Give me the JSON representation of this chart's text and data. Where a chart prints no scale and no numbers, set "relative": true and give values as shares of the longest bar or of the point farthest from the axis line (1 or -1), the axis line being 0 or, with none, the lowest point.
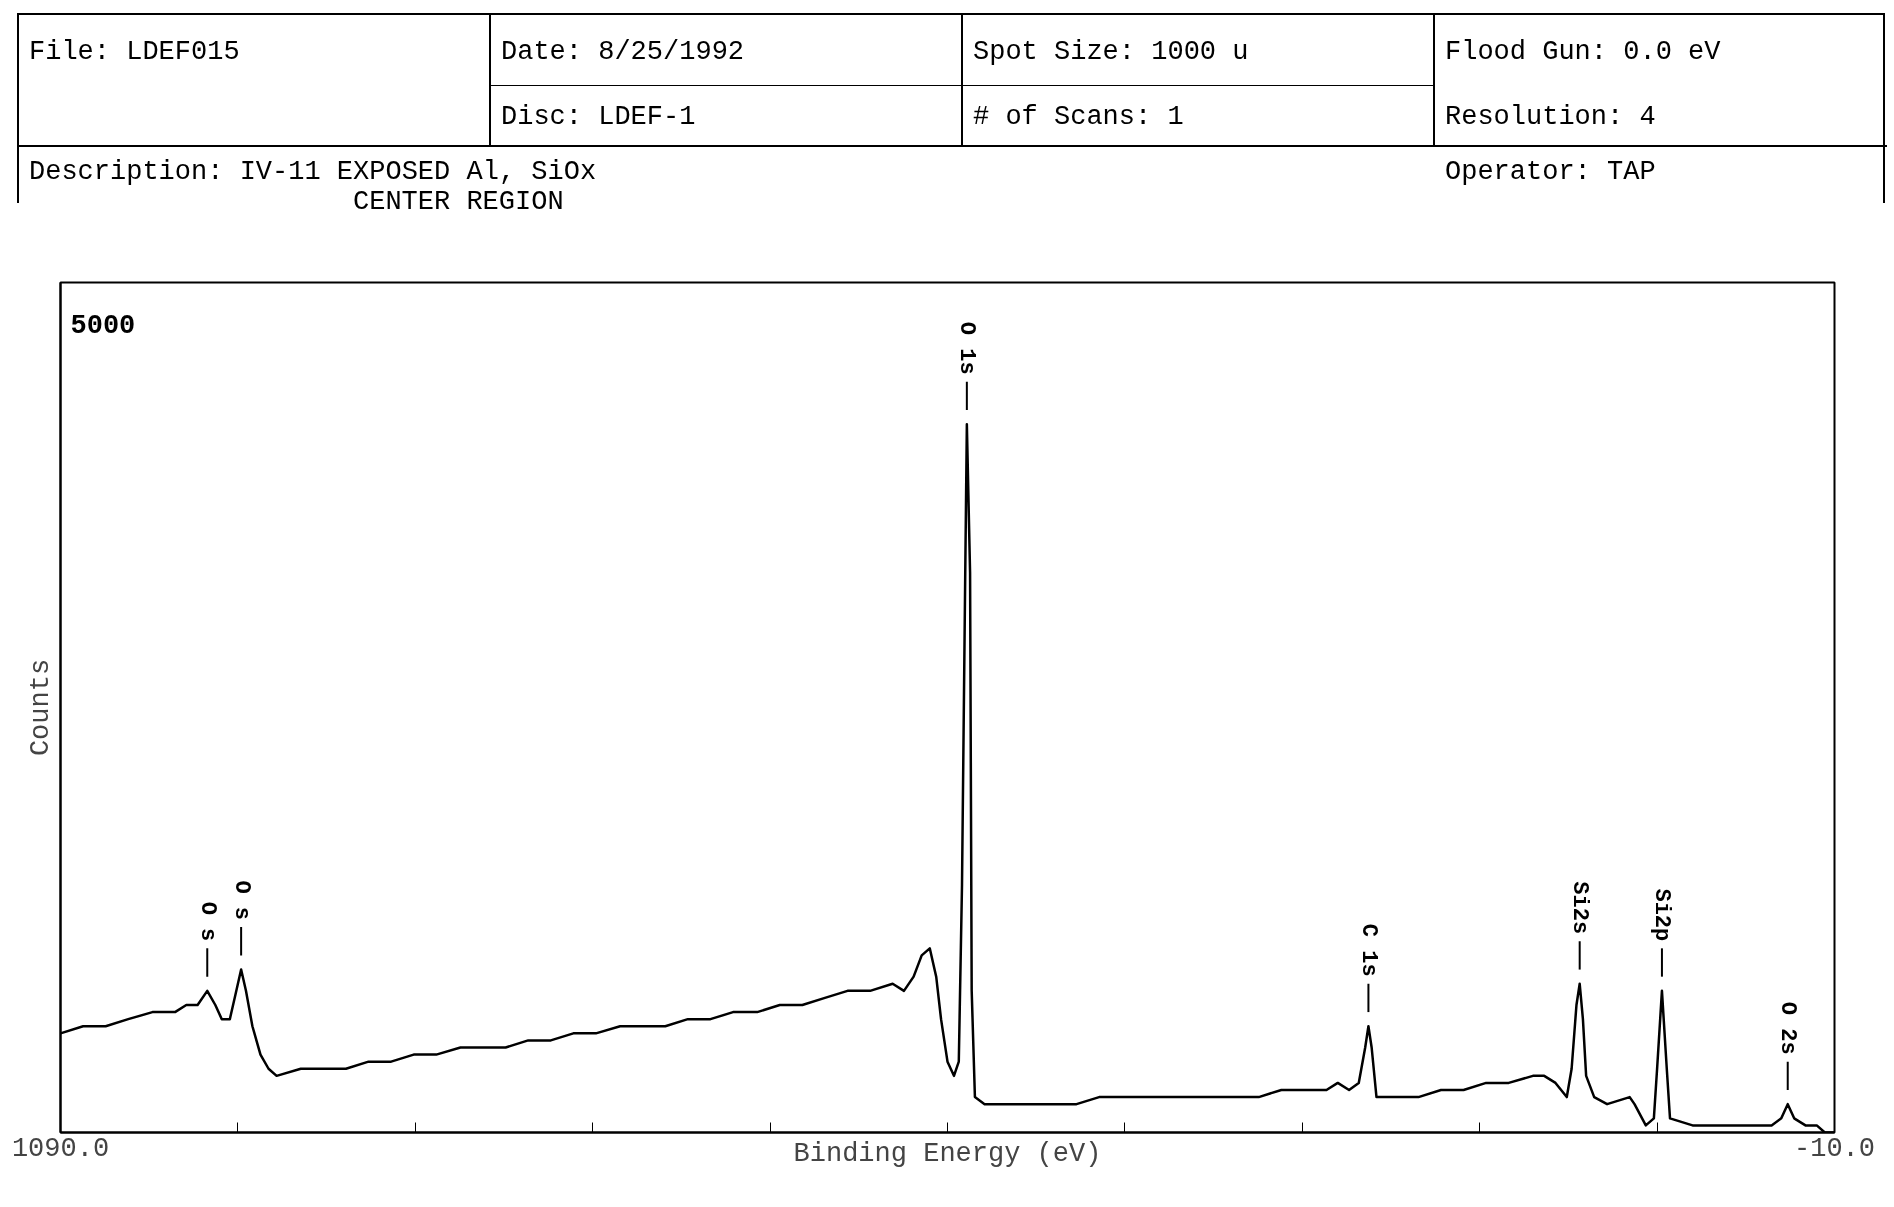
{
  "chart_data": {
    "type": "line",
    "relative": true,
    "xlabel": "Binding Energy (eV)",
    "ylabel": "Counts",
    "xlim": [
      1090,
      -10
    ],
    "xticks": [
      {
        "value": 1090,
        "label": "1090.0"
      },
      {
        "value": 980,
        "label": null
      },
      {
        "value": 870,
        "label": null
      },
      {
        "value": 760,
        "label": null
      },
      {
        "value": 650,
        "label": null
      },
      {
        "value": 540,
        "label": null
      },
      {
        "value": 430,
        "label": null
      },
      {
        "value": 320,
        "label": null
      },
      {
        "value": 210,
        "label": null
      },
      {
        "value": 100,
        "label": null
      },
      {
        "value": -10,
        "label": "-10.0"
      }
    ],
    "x": [
      1090,
      1076,
      1062,
      1048,
      1033,
      1019,
      1012,
      1005,
      999,
      994,
      990,
      985,
      982,
      978,
      975,
      971,
      966,
      961,
      956,
      941,
      927,
      913,
      899,
      885,
      871,
      857,
      842,
      828,
      814,
      800,
      786,
      772,
      758,
      743,
      729,
      715,
      701,
      687,
      673,
      658,
      644,
      630,
      616,
      602,
      588,
      574,
      567,
      561,
      556,
      551,
      547,
      544,
      540,
      536,
      533,
      531,
      529,
      528,
      526,
      525,
      523,
      517,
      503,
      489,
      475,
      460,
      446,
      432,
      418,
      404,
      390,
      376,
      361,
      347,
      333,
      319,
      305,
      298,
      291,
      285,
      281,
      279,
      277,
      274,
      262,
      248,
      234,
      220,
      206,
      192,
      177,
      170,
      163,
      156,
      153,
      150,
      148,
      146,
      144,
      139,
      131,
      117,
      114,
      107,
      102,
      100,
      97,
      94,
      92,
      78,
      50,
      36,
      29,
      23,
      19,
      15,
      8,
      1,
      -4,
      -10
    ],
    "series": [
      {
        "color": "#000000",
        "values": [
          0.14,
          0.15,
          0.15,
          0.16,
          0.17,
          0.17,
          0.18,
          0.18,
          0.2,
          0.18,
          0.16,
          0.16,
          0.19,
          0.23,
          0.2,
          0.15,
          0.11,
          0.09,
          0.08,
          0.09,
          0.09,
          0.09,
          0.1,
          0.1,
          0.11,
          0.11,
          0.12,
          0.12,
          0.12,
          0.13,
          0.13,
          0.14,
          0.14,
          0.15,
          0.15,
          0.15,
          0.16,
          0.16,
          0.17,
          0.17,
          0.18,
          0.18,
          0.19,
          0.2,
          0.2,
          0.21,
          0.2,
          0.22,
          0.25,
          0.26,
          0.22,
          0.16,
          0.1,
          0.08,
          0.1,
          0.35,
          0.79,
          1,
          0.79,
          0.2,
          0.05,
          0.04,
          0.04,
          0.04,
          0.04,
          0.04,
          0.05,
          0.05,
          0.05,
          0.05,
          0.05,
          0.05,
          0.05,
          0.05,
          0.06,
          0.06,
          0.06,
          0.07,
          0.06,
          0.07,
          0.12,
          0.15,
          0.12,
          0.05,
          0.05,
          0.05,
          0.06,
          0.06,
          0.07,
          0.07,
          0.08,
          0.08,
          0.07,
          0.05,
          0.09,
          0.18,
          0.21,
          0.16,
          0.08,
          0.05,
          0.04,
          0.05,
          0.04,
          0.01,
          0.02,
          0.09,
          0.2,
          0.09,
          0.02,
          0.01,
          0.01,
          0.01,
          0.01,
          0.02,
          0.04,
          0.02,
          0.01,
          0.01,
          0,
          0
        ]
      }
    ],
    "annotations": [
      "File: LDEF015",
      "Date: 8/25/1992",
      "Spot Size: 1000 u",
      "Flood Gun: 0.0 eV",
      "Disc: LDEF-1",
      "# of Scans: 1",
      "Resolution: 4",
      "Description: IV-11 EXPOSED Al, SiOx",
      "CENTER REGION",
      "Operator: TAP",
      "5000",
      {
        "text": "O s",
        "x": 999,
        "y": 0.2
      },
      {
        "text": "O s",
        "x": 978,
        "y": 0.23
      },
      {
        "text": "O 1s",
        "x": 528,
        "y": 1
      },
      {
        "text": "C 1s",
        "x": 279,
        "y": 0.15
      },
      {
        "text": "Si2s",
        "x": 148,
        "y": 0.21
      },
      {
        "text": "Si2p",
        "x": 97,
        "y": 0.2
      },
      {
        "text": "O 2s",
        "x": 19,
        "y": 0.04
      }
    ]
  }
}
